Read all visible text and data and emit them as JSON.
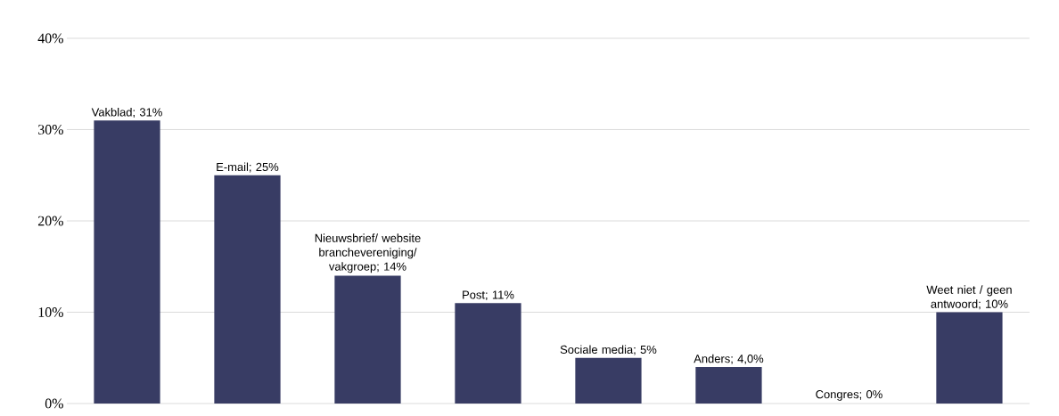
{
  "chart_data": {
    "type": "bar",
    "categories": [
      null,
      null,
      null,
      null,
      null,
      null,
      null,
      null
    ],
    "values": [
      31,
      25,
      14,
      11,
      5,
      4,
      0,
      10
    ],
    "value_labels": [
      "Vakblad; 31%",
      "E-mail; 25%",
      "Nieuwsbrief/ website branchevereniging/ vakgroep; 14%",
      "Post; 11%",
      "Sociale media; 5%",
      "Anders; 4,0%",
      "Congres; 0%",
      "Weet niet / geen antwoord; 10%"
    ],
    "color": "#383c64",
    "ylim": [
      0,
      40
    ],
    "yticks": [
      {
        "value": 0,
        "label": "0%"
      },
      {
        "value": 10,
        "label": "10%"
      },
      {
        "value": 20,
        "label": "20%"
      },
      {
        "value": 30,
        "label": "30%"
      },
      {
        "value": 40,
        "label": "40%"
      }
    ],
    "grid": "y"
  }
}
